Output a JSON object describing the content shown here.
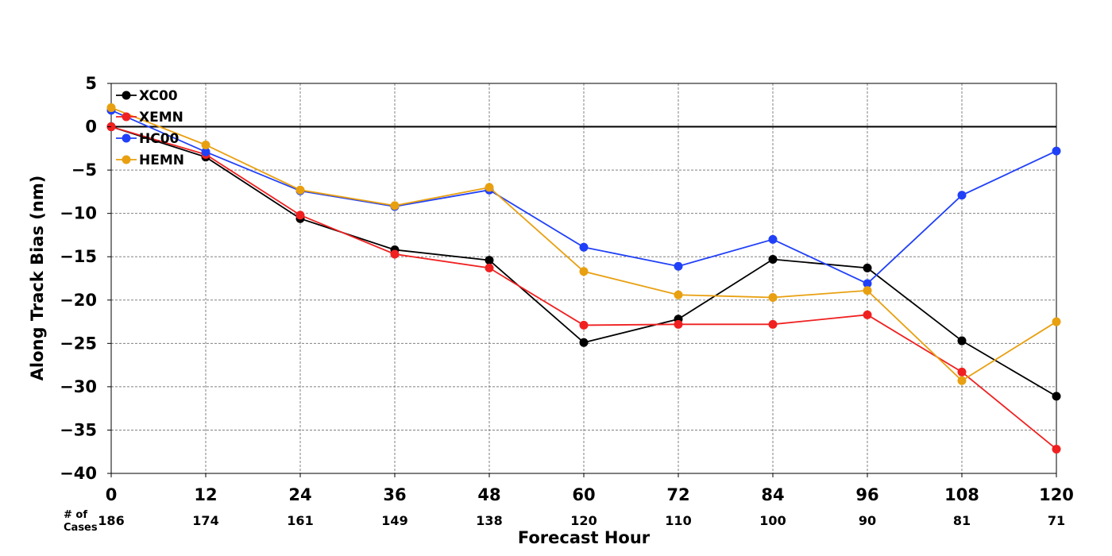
{
  "chart_data": {
    "type": "line",
    "title": "",
    "xlabel": "Forecast Hour",
    "ylabel": "Along Track Bias (nm)",
    "x": [
      0,
      12,
      24,
      36,
      48,
      60,
      72,
      84,
      96,
      108,
      120
    ],
    "xlim": [
      0,
      120
    ],
    "ylim": [
      -40,
      5
    ],
    "yticks": [
      5,
      0,
      -5,
      -10,
      -15,
      -20,
      -25,
      -30,
      -35,
      -40
    ],
    "ytick_labels": [
      "5",
      "0",
      "−5",
      "−10",
      "−15",
      "−20",
      "−25",
      "−30",
      "−35",
      "−40"
    ],
    "xtick_labels": [
      "0",
      "12",
      "24",
      "36",
      "48",
      "60",
      "72",
      "84",
      "96",
      "108",
      "120"
    ],
    "cases_label": [
      "# of",
      "Cases"
    ],
    "cases": [
      "186",
      "174",
      "161",
      "149",
      "138",
      "120",
      "110",
      "100",
      "90",
      "81",
      "71"
    ],
    "grid": true,
    "zero_line": true,
    "legend_position": "top-left",
    "series": [
      {
        "name": "XC00",
        "color": "#000000",
        "values": [
          0.0,
          -3.5,
          -10.6,
          -14.2,
          -15.4,
          -24.9,
          -22.2,
          -15.3,
          -16.3,
          -24.7,
          -31.1
        ]
      },
      {
        "name": "XEMN",
        "color": "#f02020",
        "values": [
          0.0,
          -3.2,
          -10.2,
          -14.7,
          -16.3,
          -22.9,
          -22.8,
          -22.8,
          -21.7,
          -28.3,
          -37.2
        ]
      },
      {
        "name": "HC00",
        "color": "#2040f8",
        "values": [
          1.9,
          -2.9,
          -7.4,
          -9.2,
          -7.3,
          -13.9,
          -16.1,
          -13.0,
          -18.1,
          -7.9,
          -2.8
        ]
      },
      {
        "name": "HEMN",
        "color": "#e8a010",
        "values": [
          2.2,
          -2.1,
          -7.3,
          -9.1,
          -7.0,
          -16.7,
          -19.4,
          -19.7,
          -18.9,
          -29.3,
          -22.5
        ]
      }
    ]
  }
}
